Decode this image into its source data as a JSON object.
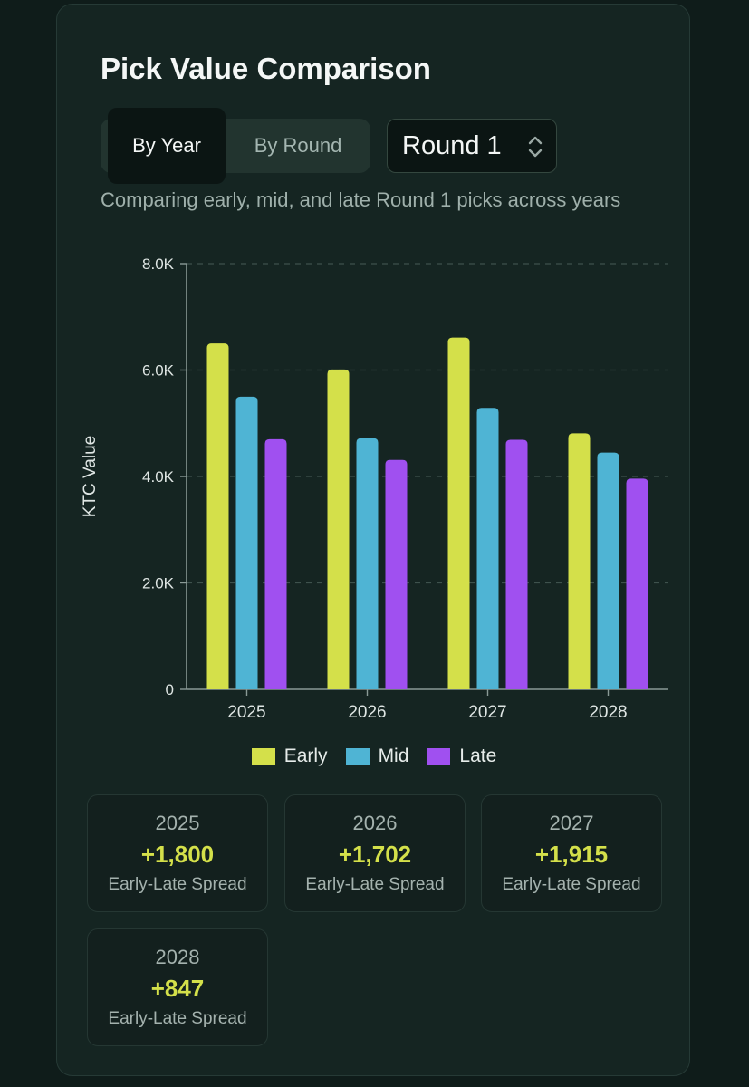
{
  "title": "Pick Value Comparison",
  "tabs": [
    {
      "label": "By Year",
      "active": true
    },
    {
      "label": "By Round",
      "active": false
    }
  ],
  "round_select": {
    "value": "Round 1"
  },
  "description": "Comparing early, mid, and late Round 1 picks across years",
  "colors": {
    "Early": "#d4e04a",
    "Mid": "#4fb4d4",
    "Late": "#a050f0"
  },
  "chart_data": {
    "type": "bar",
    "categories": [
      "2025",
      "2026",
      "2027",
      "2028"
    ],
    "series": [
      {
        "name": "Early",
        "values": [
          6500,
          6010,
          6610,
          4810
        ]
      },
      {
        "name": "Mid",
        "values": [
          5500,
          4720,
          5290,
          4450
        ]
      },
      {
        "name": "Late",
        "values": [
          4700,
          4310,
          4690,
          3960
        ]
      }
    ],
    "ylabel": "KTC Value",
    "ylim": [
      0,
      8000
    ],
    "yticks": [
      "0",
      "2.0K",
      "4.0K",
      "6.0K",
      "8.0K"
    ],
    "grid": true,
    "legend": "bottom"
  },
  "stats": [
    {
      "year": "2025",
      "value": "+1,800",
      "label": "Early-Late Spread"
    },
    {
      "year": "2026",
      "value": "+1,702",
      "label": "Early-Late Spread"
    },
    {
      "year": "2027",
      "value": "+1,915",
      "label": "Early-Late Spread"
    },
    {
      "year": "2028",
      "value": "+847",
      "label": "Early-Late Spread"
    }
  ]
}
